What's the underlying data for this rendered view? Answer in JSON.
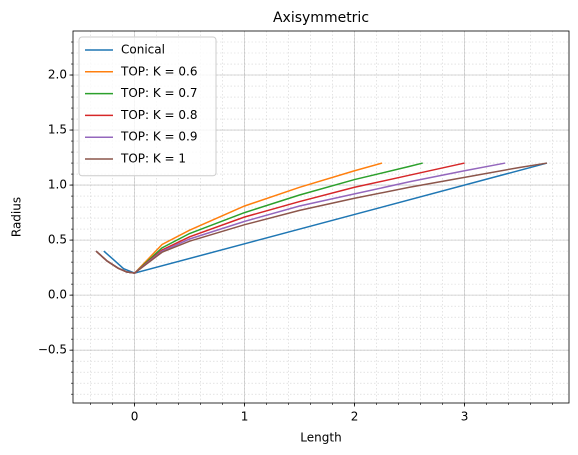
{
  "chart_data": {
    "type": "line",
    "title": "Axisymmetric",
    "x_label": "Length",
    "y_label": "Radius",
    "xlim": [
      -0.56,
      3.95
    ],
    "ylim": [
      -0.98,
      2.4
    ],
    "xticks": [
      0,
      1,
      2,
      3
    ],
    "yticks": [
      {
        "value": -0.5,
        "label": "−0.5"
      },
      {
        "value": 0,
        "label": "0.0"
      },
      0.5,
      {
        "value": 1,
        "label": "1.0"
      },
      1.5,
      {
        "value": 2,
        "label": "2.0"
      }
    ],
    "grid": true,
    "minor_grid": true,
    "legend": "upper left",
    "series": [
      {
        "name": "Conical",
        "color": "#1f77b4",
        "x": [
          -0.28,
          -0.2,
          -0.1,
          0,
          3.75
        ],
        "values": [
          0.4,
          0.33,
          0.24,
          0.2,
          1.2
        ]
      },
      {
        "name": "TOP: K = 0.6",
        "color": "#ff7f0e",
        "x": [
          -0.35,
          -0.25,
          -0.15,
          -0.07,
          0,
          0.25,
          0.5,
          1,
          1.5,
          2,
          2.25
        ],
        "values": [
          0.4,
          0.31,
          0.245,
          0.21,
          0.2,
          0.46,
          0.59,
          0.81,
          0.98,
          1.13,
          1.2
        ]
      },
      {
        "name": "TOP: K = 0.7",
        "color": "#2ca02c",
        "x": [
          -0.35,
          -0.25,
          -0.15,
          -0.07,
          0,
          0.25,
          0.5,
          1,
          1.5,
          2,
          2.5,
          2.62
        ],
        "values": [
          0.4,
          0.31,
          0.245,
          0.21,
          0.2,
          0.43,
          0.56,
          0.75,
          0.91,
          1.05,
          1.17,
          1.2
        ]
      },
      {
        "name": "TOP: K = 0.8",
        "color": "#d62728",
        "x": [
          -0.35,
          -0.25,
          -0.15,
          -0.07,
          0,
          0.25,
          0.5,
          1,
          1.5,
          2,
          2.5,
          3
        ],
        "values": [
          0.4,
          0.31,
          0.245,
          0.21,
          0.2,
          0.41,
          0.53,
          0.71,
          0.85,
          0.98,
          1.09,
          1.2
        ]
      },
      {
        "name": "TOP: K = 0.9",
        "color": "#9467bd",
        "x": [
          -0.35,
          -0.25,
          -0.15,
          -0.07,
          0,
          0.25,
          0.5,
          1,
          1.5,
          2,
          2.5,
          3,
          3.37
        ],
        "values": [
          0.4,
          0.31,
          0.245,
          0.21,
          0.2,
          0.4,
          0.51,
          0.67,
          0.81,
          0.92,
          1.03,
          1.13,
          1.2
        ]
      },
      {
        "name": "TOP: K = 1",
        "color": "#8c564b",
        "x": [
          -0.35,
          -0.25,
          -0.15,
          -0.07,
          0,
          0.25,
          0.5,
          1,
          1.5,
          2,
          2.5,
          3,
          3.5,
          3.75
        ],
        "values": [
          0.4,
          0.31,
          0.245,
          0.21,
          0.2,
          0.39,
          0.49,
          0.64,
          0.77,
          0.88,
          0.98,
          1.07,
          1.16,
          1.2
        ]
      }
    ]
  }
}
